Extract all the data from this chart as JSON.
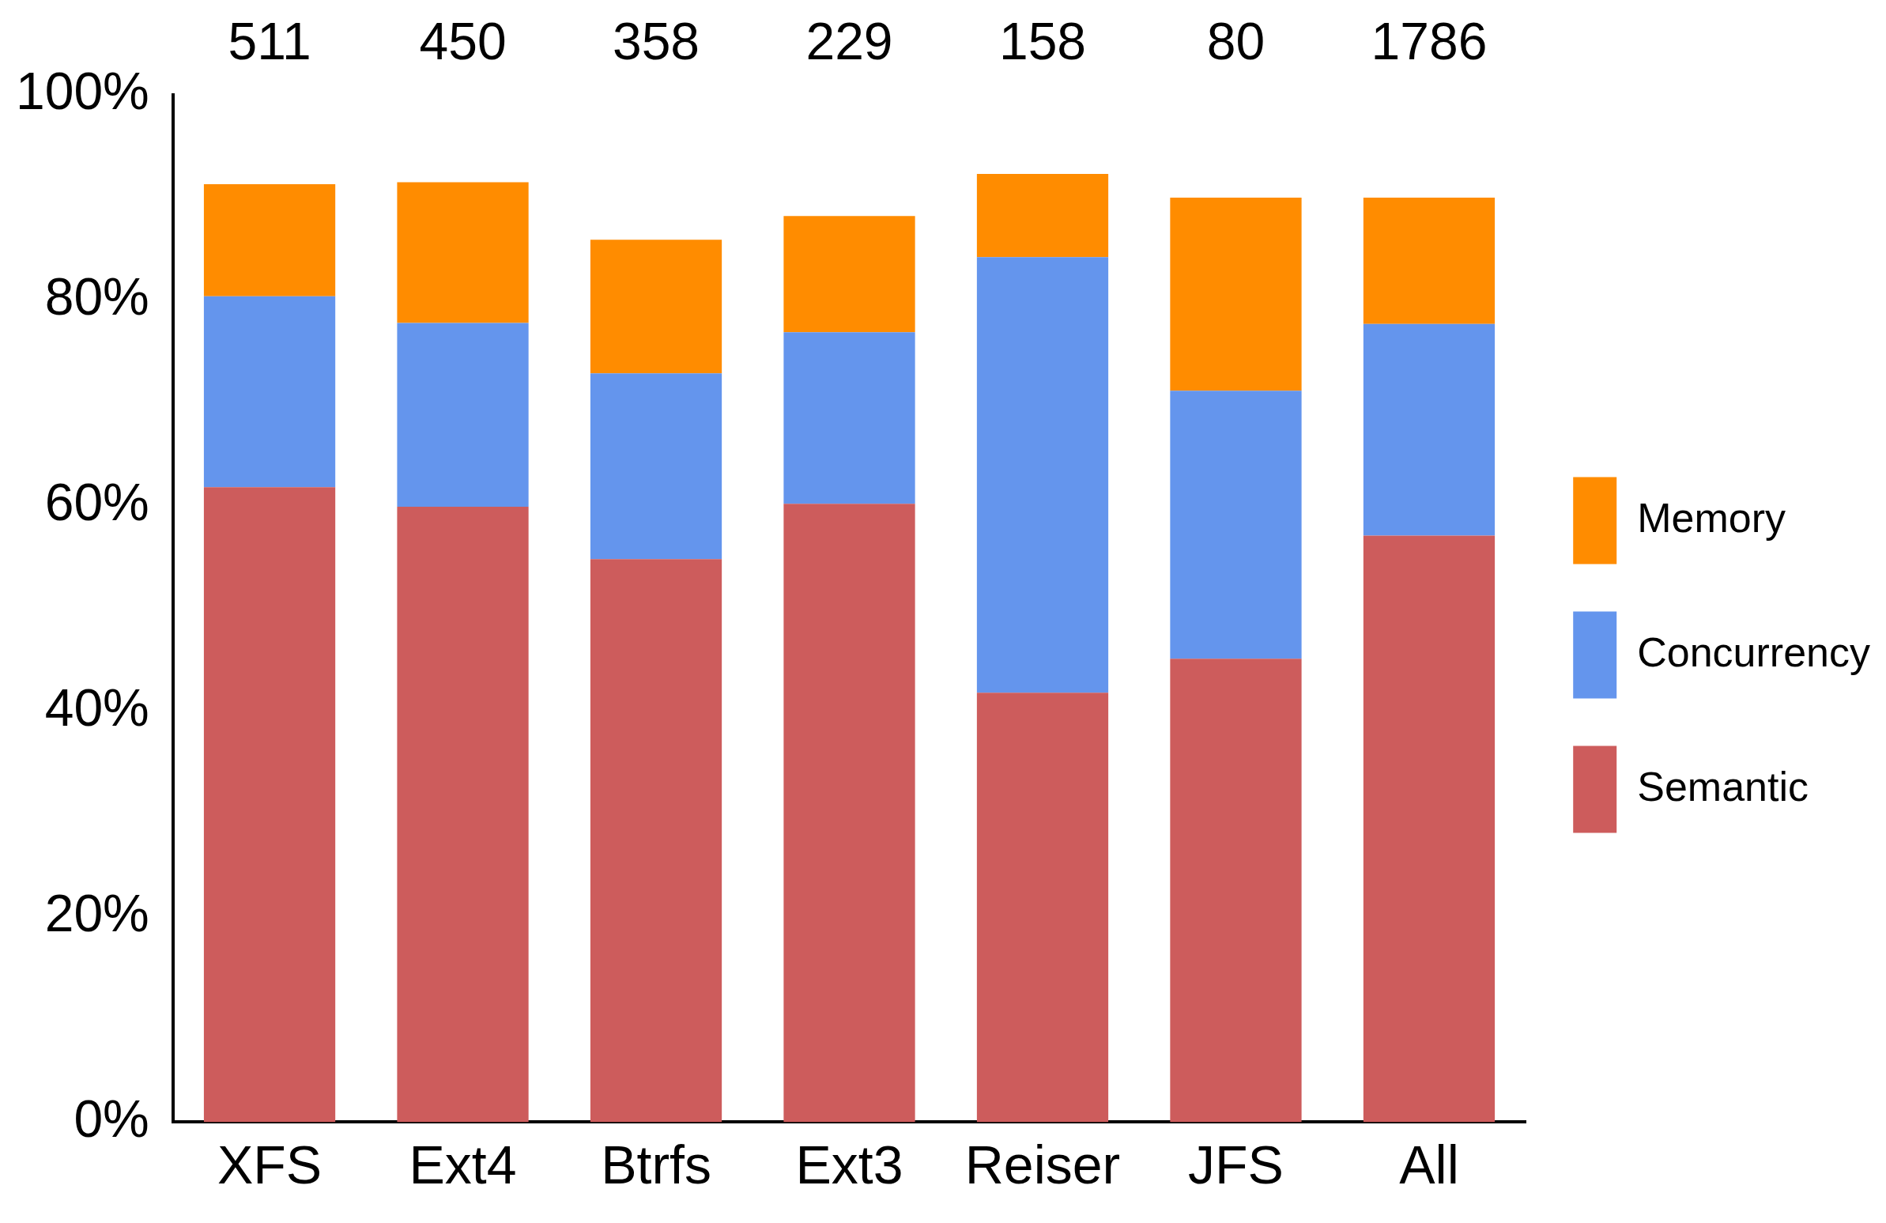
{
  "chart_data": {
    "type": "bar",
    "stacked": true,
    "categories": [
      "XFS",
      "Ext4",
      "Btrfs",
      "Ext3",
      "Reiser",
      "JFS",
      "All"
    ],
    "series": [
      {
        "name": "Semantic",
        "color": "#cd5c5c",
        "values": [
          61.8,
          59.9,
          54.8,
          60.2,
          41.8,
          45.1,
          57.1
        ]
      },
      {
        "name": "Concurrency",
        "color": "#6495ed",
        "values": [
          18.6,
          17.9,
          18.1,
          16.7,
          42.4,
          26.1,
          20.6
        ]
      },
      {
        "name": "Memory",
        "color": "#ff8c00",
        "values": [
          10.9,
          13.7,
          13.0,
          11.3,
          8.1,
          18.8,
          12.3
        ]
      }
    ],
    "ylim": [
      0,
      100
    ],
    "yticks": [
      {
        "value": 0,
        "label": "0%"
      },
      {
        "value": 20,
        "label": "20%"
      },
      {
        "value": 40,
        "label": "40%"
      },
      {
        "value": 60,
        "label": "60%"
      },
      {
        "value": 80,
        "label": "80%"
      },
      {
        "value": 100,
        "label": "100%"
      }
    ],
    "annotations": [
      "511",
      "450",
      "358",
      "229",
      "158",
      "80",
      "1786"
    ],
    "grid": false,
    "legend": "right"
  }
}
